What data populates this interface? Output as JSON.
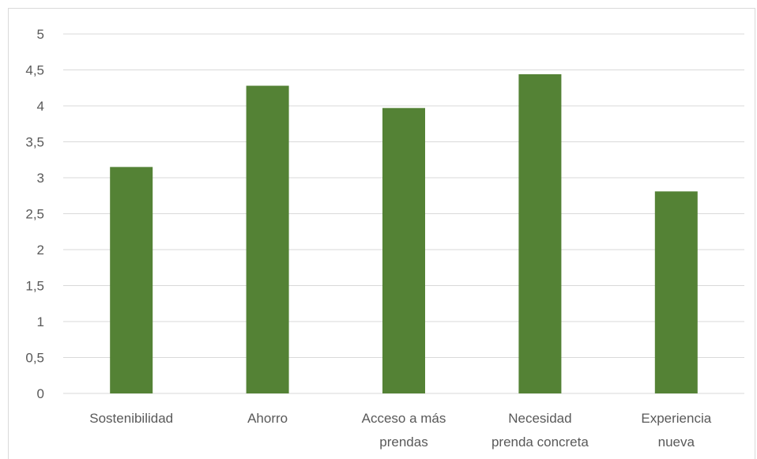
{
  "chart_data": {
    "type": "bar",
    "categories": [
      "Sostenibilidad",
      "Ahorro",
      "Acceso a más prendas",
      "Necesidad prenda concreta",
      "Experiencia nueva"
    ],
    "category_lines": [
      [
        "Sostenibilidad"
      ],
      [
        "Ahorro"
      ],
      [
        "Acceso a más",
        "prendas"
      ],
      [
        "Necesidad",
        "prenda concreta"
      ],
      [
        "Experiencia",
        "nueva"
      ]
    ],
    "values": [
      3.15,
      4.28,
      3.97,
      4.44,
      2.81
    ],
    "ylim": [
      0,
      5
    ],
    "yticks": [
      0,
      0.5,
      1,
      1.5,
      2,
      2.5,
      3,
      3.5,
      4,
      4.5,
      5
    ],
    "ytick_labels": [
      "0",
      "0,5",
      "1",
      "1,5",
      "2",
      "2,5",
      "3",
      "3,5",
      "4",
      "4,5",
      "5"
    ],
    "grid": true,
    "legend": "none",
    "bar_color": "#548235",
    "title": "",
    "xlabel": "",
    "ylabel": ""
  }
}
